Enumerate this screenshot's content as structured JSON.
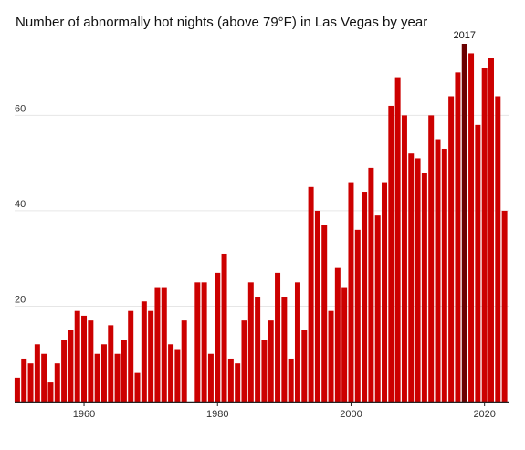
{
  "chart_data": {
    "type": "bar",
    "title": "Number of abnormally hot nights (above 79°F) in Las Vegas by year",
    "xlabel": "",
    "ylabel": "",
    "x": [
      1950,
      1951,
      1952,
      1953,
      1954,
      1955,
      1956,
      1957,
      1958,
      1959,
      1960,
      1961,
      1962,
      1963,
      1964,
      1965,
      1966,
      1967,
      1968,
      1969,
      1970,
      1971,
      1972,
      1973,
      1974,
      1975,
      1976,
      1977,
      1978,
      1979,
      1980,
      1981,
      1982,
      1983,
      1984,
      1985,
      1986,
      1987,
      1988,
      1989,
      1990,
      1991,
      1992,
      1993,
      1994,
      1995,
      1996,
      1997,
      1998,
      1999,
      2000,
      2001,
      2002,
      2003,
      2004,
      2005,
      2006,
      2007,
      2008,
      2009,
      2010,
      2011,
      2012,
      2013,
      2014,
      2015,
      2016,
      2017,
      2018,
      2019,
      2020,
      2021,
      2022,
      2023
    ],
    "values": [
      5,
      9,
      8,
      12,
      10,
      4,
      8,
      13,
      15,
      19,
      18,
      17,
      10,
      12,
      16,
      10,
      13,
      19,
      6,
      21,
      19,
      24,
      24,
      12,
      11,
      17,
      0,
      25,
      25,
      10,
      27,
      31,
      9,
      8,
      17,
      25,
      22,
      13,
      17,
      27,
      22,
      9,
      25,
      15,
      45,
      40,
      37,
      19,
      28,
      24,
      46,
      36,
      44,
      49,
      39,
      46,
      62,
      68,
      60,
      52,
      51,
      48,
      60,
      55,
      53,
      64,
      69,
      75,
      73,
      58,
      70,
      72,
      64,
      40
    ],
    "ylim": [
      0,
      75
    ],
    "xlim": [
      1949.6,
      2023.6
    ],
    "y_ticks": [
      20,
      40,
      60
    ],
    "x_ticks": [
      1960,
      1980,
      2000,
      2020
    ],
    "grid": true,
    "highlight": {
      "x": 2017,
      "label": "2017"
    },
    "colors": {
      "bar": "#cc0000",
      "highlight": "#6b0000",
      "grid": "#e6e6e6",
      "axis": "#222222"
    }
  }
}
